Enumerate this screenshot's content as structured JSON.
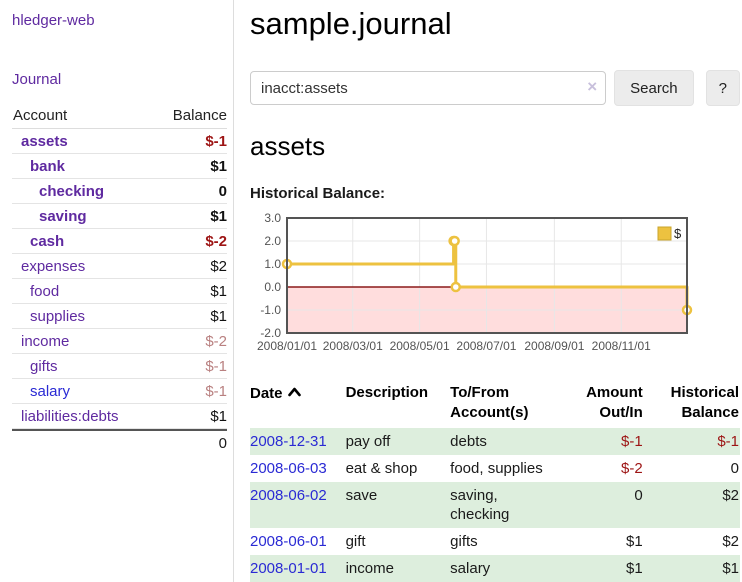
{
  "app": {
    "title": "hledger-web"
  },
  "nav": {
    "journal": "Journal"
  },
  "sidebar": {
    "headers": {
      "account": "Account",
      "balance": "Balance"
    },
    "accounts": [
      {
        "name": "assets",
        "balance": "$-1"
      },
      {
        "name": "bank",
        "balance": "$1"
      },
      {
        "name": "checking",
        "balance": "0"
      },
      {
        "name": "saving",
        "balance": "$1"
      },
      {
        "name": "cash",
        "balance": "$-2"
      },
      {
        "name": "expenses",
        "balance": "$2"
      },
      {
        "name": "food",
        "balance": "$1"
      },
      {
        "name": "supplies",
        "balance": "$1"
      },
      {
        "name": "income",
        "balance": "$-2"
      },
      {
        "name": "gifts",
        "balance": "$-1"
      },
      {
        "name": "salary",
        "balance": "$-1"
      },
      {
        "name": "liabilities:debts",
        "balance": "$1"
      }
    ],
    "total": "0"
  },
  "header": {
    "title": "sample.journal"
  },
  "search": {
    "value": "inacct:assets",
    "clear_icon": "×",
    "button": "Search",
    "help_button": "?"
  },
  "account_page": {
    "heading": "assets",
    "chart_label": "Historical Balance:"
  },
  "chart_data": {
    "type": "line",
    "title": "Historical Balance:",
    "series": [
      {
        "name": "$",
        "color": "#edc240",
        "step": true,
        "points": [
          [
            "2008-01-01",
            1
          ],
          [
            "2008-06-01",
            2
          ],
          [
            "2008-06-02",
            2
          ],
          [
            "2008-06-03",
            0
          ],
          [
            "2008-12-31",
            -1
          ]
        ]
      }
    ],
    "x_range": [
      "2008-01-01",
      "2008-12-31"
    ],
    "ylim": [
      -2,
      3
    ],
    "y_ticks": [
      3,
      2,
      1,
      0,
      -1,
      -2
    ],
    "x_ticks": [
      {
        "date": "2008-01-01",
        "label": "2008/01/01"
      },
      {
        "date": "2008-03-01",
        "label": "2008/03/01"
      },
      {
        "date": "2008-05-01",
        "label": "2008/05/01"
      },
      {
        "date": "2008-07-01",
        "label": "2008/07/01"
      },
      {
        "date": "2008-09-01",
        "label": "2008/09/01"
      },
      {
        "date": "2008-11-01",
        "label": "2008/11/01"
      }
    ],
    "grid": true,
    "legend_position": "top-right",
    "negative_region_fill": "#ffdddd",
    "zero_line_color": "#8b1a1a",
    "border_color": "#545454"
  },
  "transactions": {
    "headers": {
      "date": "Date",
      "description": "Description",
      "accounts": "To/From Account(s)",
      "amount": "Amount Out/In",
      "balance": "Historical Balance"
    },
    "rows": [
      {
        "date": "2008-12-31",
        "description": "pay off",
        "accounts": "debts",
        "amount": "$-1",
        "balance": "$-1"
      },
      {
        "date": "2008-06-03",
        "description": "eat & shop",
        "accounts": "food, supplies",
        "amount": "$-2",
        "balance": "0"
      },
      {
        "date": "2008-06-02",
        "description": "save",
        "accounts": "saving, checking",
        "amount": "0",
        "balance": "$2"
      },
      {
        "date": "2008-06-01",
        "description": "gift",
        "accounts": "gifts",
        "amount": "$1",
        "balance": "$2"
      },
      {
        "date": "2008-01-01",
        "description": "income",
        "accounts": "salary",
        "amount": "$1",
        "balance": "$1"
      }
    ]
  },
  "colors": {
    "accent_purple": "#5f2aa0",
    "link_blue": "#2a2ad4",
    "negative_dark": "#9d1414",
    "negative_muted": "#b98080",
    "row_stripe": "#ddeedd",
    "chart_line": "#edc240"
  }
}
